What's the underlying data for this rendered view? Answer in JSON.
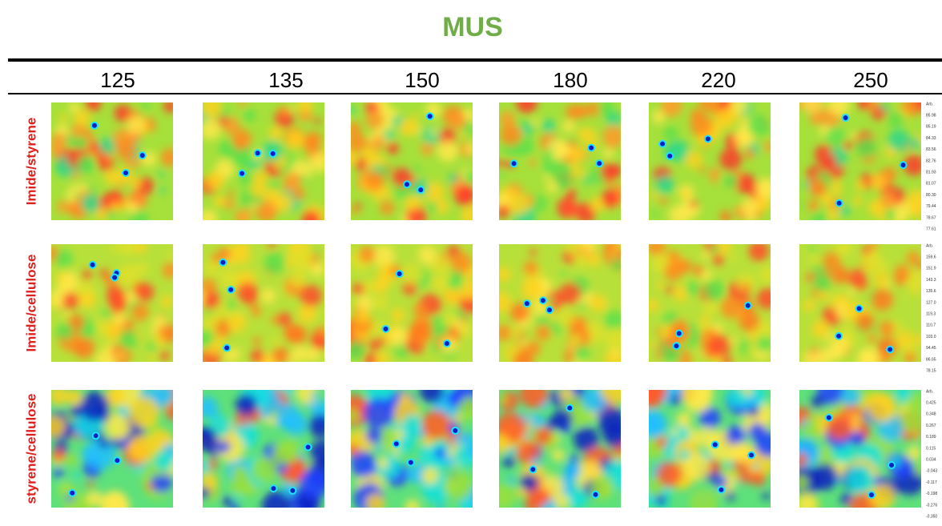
{
  "header": {
    "title": "MUS"
  },
  "columns": [
    "125",
    "135",
    "150",
    "180",
    "220",
    "250"
  ],
  "rows": [
    {
      "label": "Imide/styrene",
      "scale": [
        "Arb.",
        "85.98",
        "85.19",
        "84.33",
        "83.56",
        "82.76",
        "81.93",
        "81.07",
        "80.30",
        "79.44",
        "78.67",
        "77.61"
      ]
    },
    {
      "label": "Imide/cellulose",
      "scale": [
        "Arb.",
        "159.6",
        "151.9",
        "143.3",
        "135.6",
        "127.0",
        "119.3",
        "110.7",
        "103.0",
        "94.45",
        "86.65",
        "78.15"
      ]
    },
    {
      "label": "styrene/cellulose",
      "scale": [
        "Arb.",
        "0.425",
        "0.348",
        "0.267",
        "0.189",
        "0.115",
        "0.034",
        "-0.043",
        "-0.117",
        "-0.198",
        "-0.276",
        "-0.350"
      ]
    }
  ]
}
